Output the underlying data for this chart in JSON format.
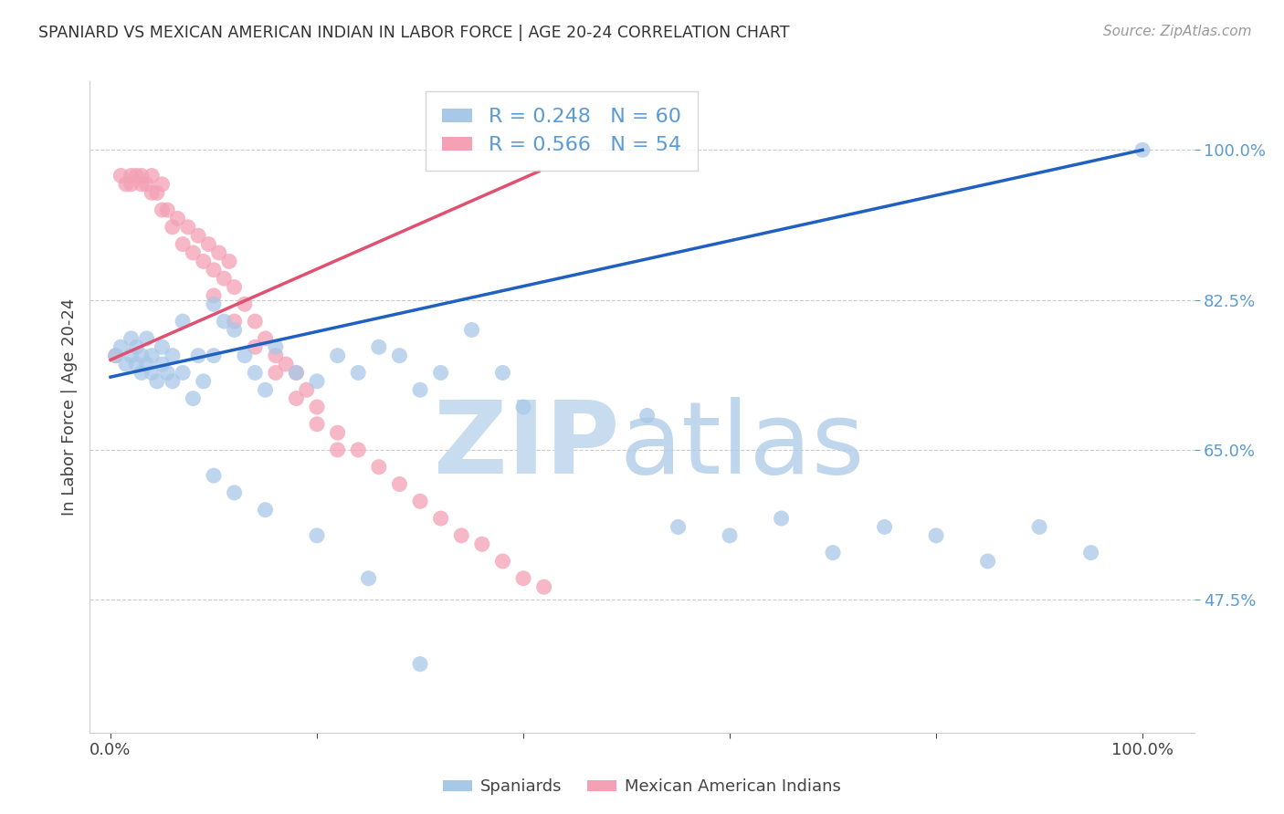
{
  "title": "SPANIARD VS MEXICAN AMERICAN INDIAN IN LABOR FORCE | AGE 20-24 CORRELATION CHART",
  "source": "Source: ZipAtlas.com",
  "ylabel": "In Labor Force | Age 20-24",
  "blue_R": 0.248,
  "blue_N": 60,
  "pink_R": 0.566,
  "pink_N": 54,
  "blue_color": "#a8c8e8",
  "pink_color": "#f4a0b5",
  "line_blue": "#2060c0",
  "line_pink": "#e05070",
  "xlim": [
    -0.02,
    1.05
  ],
  "ylim": [
    0.32,
    1.08
  ],
  "ytick_vals": [
    0.475,
    0.65,
    0.825,
    1.0
  ],
  "ytick_labels": [
    "47.5%",
    "65.0%",
    "82.5%",
    "100.0%"
  ],
  "blue_line_x": [
    0.0,
    1.0
  ],
  "blue_line_y": [
    0.735,
    1.0
  ],
  "pink_line_x": [
    0.0,
    0.415
  ],
  "pink_line_y": [
    0.755,
    0.975
  ],
  "blue_x": [
    0.005,
    0.01,
    0.015,
    0.02,
    0.02,
    0.025,
    0.025,
    0.03,
    0.03,
    0.035,
    0.035,
    0.04,
    0.04,
    0.045,
    0.05,
    0.05,
    0.055,
    0.06,
    0.06,
    0.07,
    0.07,
    0.08,
    0.085,
    0.09,
    0.1,
    0.1,
    0.11,
    0.12,
    0.13,
    0.14,
    0.15,
    0.16,
    0.18,
    0.2,
    0.22,
    0.24,
    0.26,
    0.28,
    0.3,
    0.32,
    0.35,
    0.38,
    0.4,
    0.52,
    0.55,
    0.6,
    0.65,
    0.7,
    0.75,
    0.8,
    0.85,
    0.9,
    0.95,
    1.0,
    0.1,
    0.12,
    0.15,
    0.2,
    0.25,
    0.3
  ],
  "blue_y": [
    0.76,
    0.77,
    0.75,
    0.78,
    0.76,
    0.75,
    0.77,
    0.74,
    0.76,
    0.75,
    0.78,
    0.74,
    0.76,
    0.73,
    0.75,
    0.77,
    0.74,
    0.73,
    0.76,
    0.74,
    0.8,
    0.71,
    0.76,
    0.73,
    0.82,
    0.76,
    0.8,
    0.79,
    0.76,
    0.74,
    0.72,
    0.77,
    0.74,
    0.73,
    0.76,
    0.74,
    0.77,
    0.76,
    0.72,
    0.74,
    0.79,
    0.74,
    0.7,
    0.69,
    0.56,
    0.55,
    0.57,
    0.53,
    0.56,
    0.55,
    0.52,
    0.56,
    0.53,
    1.0,
    0.62,
    0.6,
    0.58,
    0.55,
    0.5,
    0.4
  ],
  "pink_x": [
    0.005,
    0.01,
    0.015,
    0.02,
    0.02,
    0.025,
    0.03,
    0.03,
    0.035,
    0.04,
    0.04,
    0.045,
    0.05,
    0.05,
    0.055,
    0.06,
    0.065,
    0.07,
    0.075,
    0.08,
    0.085,
    0.09,
    0.095,
    0.1,
    0.105,
    0.11,
    0.115,
    0.12,
    0.13,
    0.14,
    0.15,
    0.16,
    0.17,
    0.18,
    0.19,
    0.2,
    0.22,
    0.24,
    0.26,
    0.28,
    0.3,
    0.32,
    0.34,
    0.36,
    0.38,
    0.4,
    0.42,
    0.1,
    0.12,
    0.14,
    0.16,
    0.18,
    0.2,
    0.22
  ],
  "pink_y": [
    0.76,
    0.97,
    0.96,
    0.97,
    0.96,
    0.97,
    0.96,
    0.97,
    0.96,
    0.95,
    0.97,
    0.95,
    0.93,
    0.96,
    0.93,
    0.91,
    0.92,
    0.89,
    0.91,
    0.88,
    0.9,
    0.87,
    0.89,
    0.86,
    0.88,
    0.85,
    0.87,
    0.84,
    0.82,
    0.8,
    0.78,
    0.76,
    0.75,
    0.74,
    0.72,
    0.7,
    0.67,
    0.65,
    0.63,
    0.61,
    0.59,
    0.57,
    0.55,
    0.54,
    0.52,
    0.5,
    0.49,
    0.83,
    0.8,
    0.77,
    0.74,
    0.71,
    0.68,
    0.65
  ]
}
